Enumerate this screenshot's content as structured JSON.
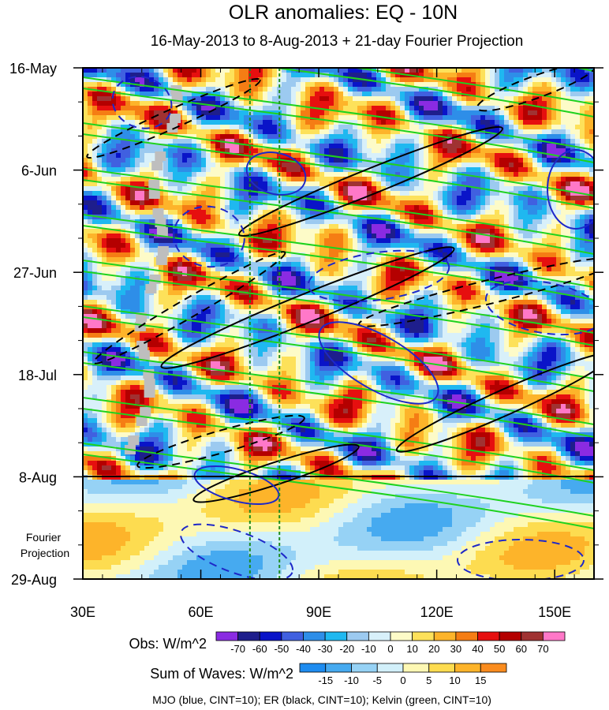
{
  "chart_data": {
    "type": "heatmap",
    "title": "OLR anomalies: EQ - 10N",
    "subtitle": "16-May-2013 to 8-Aug-2013 + 21-day Fourier Projection",
    "x_axis": {
      "unit": "degrees east longitude",
      "range": [
        30,
        160
      ],
      "ticks": [
        30,
        60,
        90,
        120,
        150
      ],
      "tick_labels": [
        "30E",
        "60E",
        "90E",
        "120E",
        "150E"
      ]
    },
    "y_axis": {
      "range": [
        "2013-05-16",
        "2013-08-29"
      ],
      "ticks": [
        "2013-05-16",
        "2013-06-06",
        "2013-06-27",
        "2013-07-18",
        "2013-08-08",
        "2013-08-29"
      ],
      "tick_labels": [
        "16-May",
        "6-Jun",
        "27-Jun",
        "18-Jul",
        "8-Aug",
        "29-Aug"
      ],
      "direction": "time increases downward"
    },
    "forecast_label": "Fourier Projection",
    "observation_end": "2013-08-08",
    "reference_lines_lon": [
      72.5,
      80
    ],
    "colorbars": [
      {
        "title": "Obs: W/m^2",
        "labels": [
          "-70",
          "-60",
          "-50",
          "-40",
          "-30",
          "-20",
          "-10",
          "0",
          "10",
          "20",
          "30",
          "40",
          "50",
          "60",
          "70"
        ],
        "colors": [
          "#8a2be2",
          "#1e1e8c",
          "#0a14c8",
          "#4060e0",
          "#2e8ee8",
          "#1fb8f0",
          "#9ccaf0",
          "#d8f0fa",
          "#fdfbc8",
          "#fde15a",
          "#fdb42a",
          "#f57d14",
          "#e60f0f",
          "#b40000",
          "#a03232",
          "#ff78c8"
        ]
      },
      {
        "title": "Sum of Waves: W/m^2",
        "labels": [
          "-15",
          "-10",
          "-5",
          "0",
          "5",
          "10",
          "15"
        ],
        "colors": [
          "#1e8cf0",
          "#46aaf0",
          "#96d2f5",
          "#d2f0fa",
          "#fdf8b4",
          "#fddc50",
          "#fdb42a",
          "#fa8c1e"
        ]
      }
    ],
    "contour_legend": "MJO (blue, CINT=10); ER (black, CINT=10); Kelvin (green, CINT=10)",
    "contour_colors": {
      "mjo": "#1e28c8",
      "er": "#000000",
      "kelvin": "#1ed21e"
    },
    "missing_color": "#bebebe"
  }
}
